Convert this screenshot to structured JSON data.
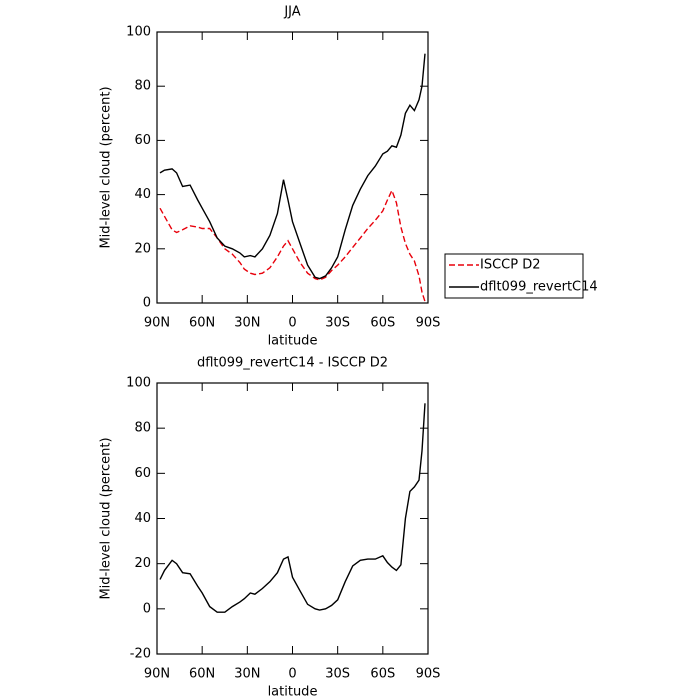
{
  "chart_data": [
    {
      "type": "line",
      "title": "JJA",
      "x_label": "latitude",
      "y_label": "Mid-level cloud (percent)",
      "x": [
        88,
        85,
        80,
        77,
        73,
        68,
        63,
        60,
        55,
        50,
        45,
        40,
        35,
        32,
        28,
        25,
        20,
        15,
        10,
        6,
        3,
        0,
        -5,
        -10,
        -15,
        -18,
        -22,
        -26,
        -30,
        -35,
        -40,
        -45,
        -50,
        -55,
        -60,
        -63,
        -66,
        -69,
        -72,
        -75,
        -78,
        -81,
        -84,
        -86,
        -88
      ],
      "series": [
        {
          "name": "ISCCP D2",
          "color": "#e8000b",
          "dash": true,
          "values": [
            35,
            32,
            27,
            26,
            27,
            28.5,
            28,
            27.5,
            27.5,
            24,
            20,
            18,
            15,
            12.5,
            11,
            10.5,
            11,
            13,
            17,
            21,
            23,
            20,
            15,
            11,
            9,
            8.5,
            9.5,
            12,
            14,
            17,
            20.5,
            24,
            27.5,
            30.5,
            34,
            38,
            41.5,
            37,
            28,
            22,
            18,
            15.5,
            10,
            4,
            0.5
          ]
        },
        {
          "name": "dflt099_revertC14",
          "color": "#000000",
          "dash": false,
          "values": [
            48,
            49,
            49.5,
            48,
            43,
            43.5,
            38,
            35,
            30,
            24,
            21,
            20,
            18.5,
            17,
            17.5,
            17,
            20,
            25,
            33,
            45.5,
            38,
            30,
            22,
            14,
            9.5,
            9,
            10,
            13,
            17,
            27,
            36,
            42,
            47,
            50.5,
            55,
            56,
            58,
            57.5,
            62,
            70,
            73,
            71,
            75,
            80,
            92
          ]
        }
      ],
      "xlim": [
        90,
        -90
      ],
      "xticks": [
        {
          "value": 90,
          "label": "90N"
        },
        {
          "value": 60,
          "label": "60N"
        },
        {
          "value": 30,
          "label": "30N"
        },
        0,
        {
          "value": -30,
          "label": "30S"
        },
        {
          "value": -60,
          "label": "60S"
        },
        {
          "value": -90,
          "label": "90S"
        }
      ],
      "ylim": [
        0,
        100
      ],
      "yticks": [
        0,
        20,
        40,
        60,
        80,
        100
      ],
      "legend": "outside right"
    },
    {
      "type": "line",
      "title": "dflt099_revertC14 - ISCCP D2",
      "x_label": "latitude",
      "y_label": "Mid-level cloud (percent)",
      "x": [
        88,
        85,
        80,
        77,
        73,
        68,
        63,
        60,
        55,
        50,
        45,
        40,
        35,
        32,
        28,
        25,
        20,
        15,
        10,
        6,
        3,
        0,
        -5,
        -10,
        -15,
        -18,
        -22,
        -26,
        -30,
        -35,
        -40,
        -45,
        -50,
        -55,
        -60,
        -63,
        -66,
        -69,
        -72,
        -75,
        -78,
        -81,
        -84,
        -86,
        -88
      ],
      "series": [
        {
          "color": "#000000",
          "dash": false,
          "values": [
            13,
            17,
            21.5,
            20,
            16,
            15.5,
            10,
            7,
            1,
            -1.5,
            -1.5,
            1,
            3,
            4.5,
            7,
            6.5,
            9,
            12,
            16,
            22,
            23,
            14,
            8,
            2,
            0,
            -0.5,
            0,
            1.5,
            4,
            12,
            19,
            21.5,
            22,
            22,
            23.5,
            20.5,
            18.5,
            17,
            19.5,
            40,
            52,
            54,
            57,
            70,
            91
          ]
        }
      ],
      "xlim": [
        90,
        -90
      ],
      "xticks": [
        {
          "value": 90,
          "label": "90N"
        },
        {
          "value": 60,
          "label": "60N"
        },
        {
          "value": 30,
          "label": "30N"
        },
        0,
        {
          "value": -30,
          "label": "30S"
        },
        {
          "value": -60,
          "label": "60S"
        },
        {
          "value": -90,
          "label": "90S"
        }
      ],
      "ylim": [
        -20,
        100
      ],
      "yticks": [
        -20,
        0,
        20,
        40,
        60,
        80,
        100
      ]
    }
  ]
}
